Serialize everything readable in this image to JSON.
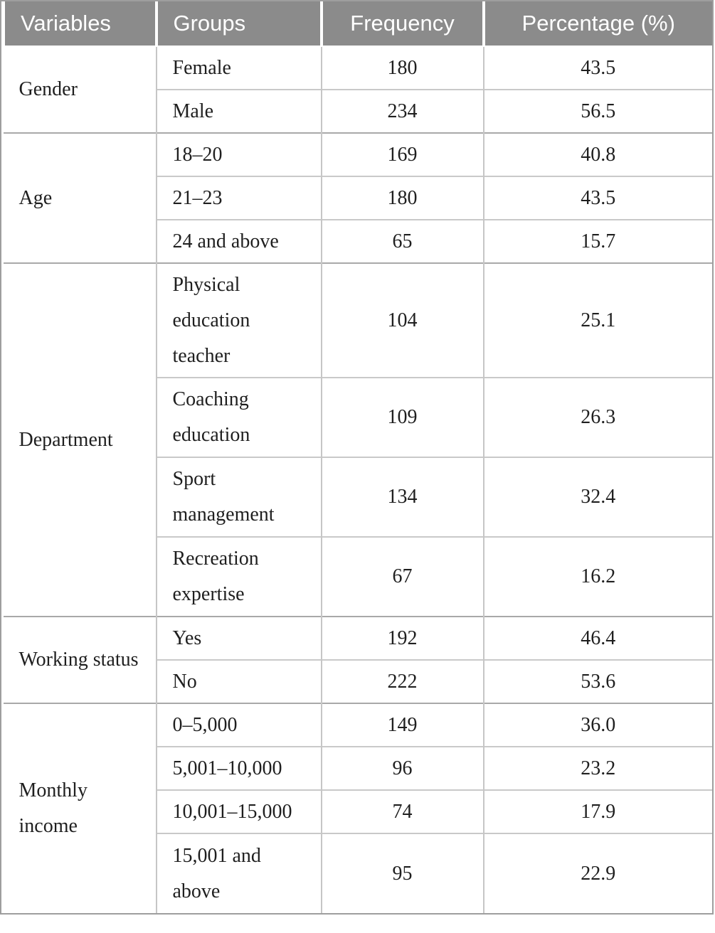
{
  "table": {
    "headers": [
      "Variables",
      "Groups",
      "Frequency",
      "Percentage (%)"
    ],
    "groups": [
      {
        "variable": "Gender",
        "rows": [
          [
            "Female",
            "180",
            "43.5"
          ],
          [
            "Male",
            "234",
            "56.5"
          ]
        ]
      },
      {
        "variable": "Age",
        "rows": [
          [
            "18–20",
            "169",
            "40.8"
          ],
          [
            "21–23",
            "180",
            "43.5"
          ],
          [
            "24 and above",
            "65",
            "15.7"
          ]
        ]
      },
      {
        "variable": "Department",
        "rows": [
          [
            "Physical\neducation\nteacher",
            "104",
            "25.1"
          ],
          [
            "Coaching\neducation",
            "109",
            "26.3"
          ],
          [
            "Sport\nmanagement",
            "134",
            "32.4"
          ],
          [
            "Recreation\nexpertise",
            "67",
            "16.2"
          ]
        ]
      },
      {
        "variable": "Working status",
        "rows": [
          [
            "Yes",
            "192",
            "46.4"
          ],
          [
            "No",
            "222",
            "53.6"
          ]
        ]
      },
      {
        "variable": "Monthly\nincome",
        "rows": [
          [
            "0–5,000",
            "149",
            "36.0"
          ],
          [
            "5,001–10,000",
            "96",
            "23.2"
          ],
          [
            "10,001–15,000",
            "74",
            "17.9"
          ],
          [
            "15,001 and\nabove",
            "95",
            "22.9"
          ]
        ]
      }
    ],
    "colors": {
      "header_bg": "#8b8b8b",
      "header_text": "#ffffff",
      "in_group_line": "#c9c9c9",
      "group_line": "#a9a9a9",
      "outer_border": "#9e9e9e",
      "body_text": "#1f1f1f"
    }
  }
}
